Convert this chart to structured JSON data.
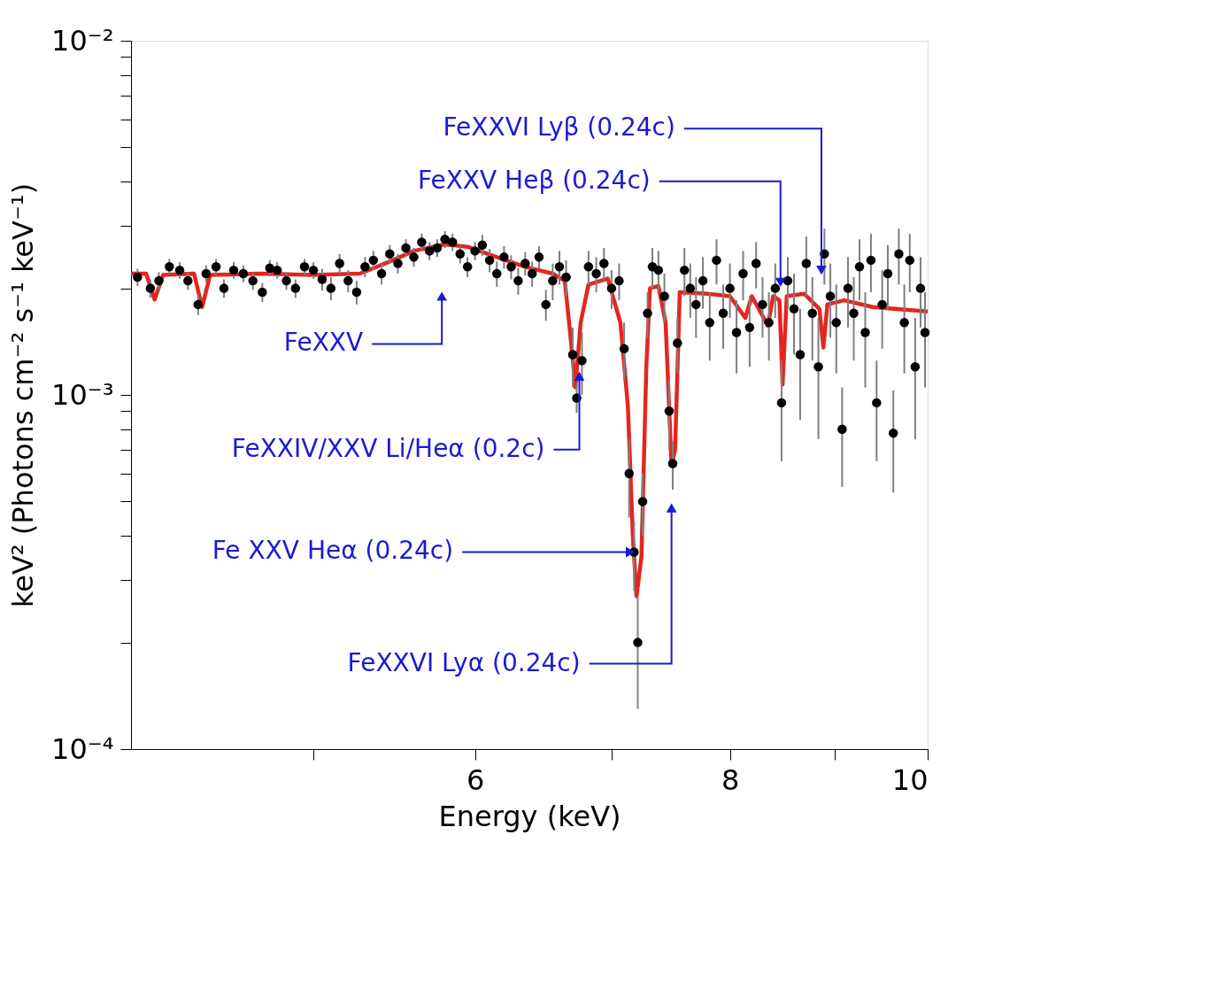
{
  "chart_data": {
    "type": "scatter",
    "xlabel": "Energy (keV)",
    "ylabel": "keV² (Photons cm⁻² s⁻¹ keV⁻¹)",
    "log": "xy",
    "grid": false,
    "xlim": [
      4.07,
      10
    ],
    "ylim": [
      0.0001,
      0.01
    ],
    "xticks": [
      {
        "value": 5,
        "label": null
      },
      6,
      {
        "value": 7,
        "label": null
      },
      8,
      {
        "value": 9,
        "label": null
      },
      10
    ],
    "yticks": [
      {
        "value": 0.0001,
        "label": "10⁻⁴"
      },
      {
        "value": 0.0002,
        "label": null
      },
      {
        "value": 0.0003,
        "label": null
      },
      {
        "value": 0.0004,
        "label": null
      },
      {
        "value": 0.0005,
        "label": null
      },
      {
        "value": 0.0006,
        "label": null
      },
      {
        "value": 0.0007,
        "label": null
      },
      {
        "value": 0.0008,
        "label": null
      },
      {
        "value": 0.0009,
        "label": null
      },
      {
        "value": 0.001,
        "label": "10⁻³"
      },
      {
        "value": 0.002,
        "label": null
      },
      {
        "value": 0.003,
        "label": null
      },
      {
        "value": 0.004,
        "label": null
      },
      {
        "value": 0.005,
        "label": null
      },
      {
        "value": 0.006,
        "label": null
      },
      {
        "value": 0.007,
        "label": null
      },
      {
        "value": 0.008,
        "label": null
      },
      {
        "value": 0.009,
        "label": null
      },
      {
        "value": 0.01,
        "label": "10⁻²"
      }
    ],
    "series": [
      {
        "color": "#000000",
        "marker": "circle",
        "x": [
          4.1,
          4.16,
          4.2,
          4.25,
          4.3,
          4.34,
          4.39,
          4.43,
          4.48,
          4.52,
          4.57,
          4.62,
          4.67,
          4.72,
          4.76,
          4.8,
          4.85,
          4.9,
          4.95,
          5.0,
          5.05,
          5.1,
          5.15,
          5.2,
          5.25,
          5.3,
          5.35,
          5.4,
          5.45,
          5.5,
          5.55,
          5.6,
          5.65,
          5.7,
          5.75,
          5.8,
          5.85,
          5.9,
          5.95,
          6.0,
          6.05,
          6.1,
          6.15,
          6.2,
          6.25,
          6.3,
          6.35,
          6.4,
          6.45,
          6.5,
          6.55,
          6.6,
          6.65,
          6.7,
          6.73,
          6.77,
          6.82,
          6.88,
          6.94,
          7.0,
          7.06,
          7.1,
          7.14,
          7.18,
          7.21,
          7.25,
          7.29,
          7.33,
          7.38,
          7.43,
          7.47,
          7.5,
          7.54,
          7.6,
          7.65,
          7.7,
          7.76,
          7.82,
          7.88,
          7.94,
          8.0,
          8.06,
          8.12,
          8.18,
          8.24,
          8.3,
          8.36,
          8.42,
          8.48,
          8.54,
          8.6,
          8.66,
          8.72,
          8.78,
          8.84,
          8.9,
          8.96,
          9.02,
          9.08,
          9.14,
          9.2,
          9.26,
          9.32,
          9.38,
          9.44,
          9.5,
          9.56,
          9.62,
          9.68,
          9.74,
          9.8,
          9.86,
          9.92,
          9.97
        ],
        "values": [
          0.00215,
          0.002,
          0.0021,
          0.0023,
          0.00225,
          0.0021,
          0.0018,
          0.0022,
          0.0023,
          0.002,
          0.00225,
          0.0022,
          0.0021,
          0.00195,
          0.00228,
          0.00225,
          0.0021,
          0.002,
          0.0023,
          0.00225,
          0.00212,
          0.002,
          0.00235,
          0.0021,
          0.00195,
          0.0023,
          0.0024,
          0.0022,
          0.0025,
          0.00235,
          0.0026,
          0.00245,
          0.0027,
          0.00255,
          0.0026,
          0.00275,
          0.0027,
          0.0025,
          0.0023,
          0.00255,
          0.00265,
          0.0024,
          0.0022,
          0.00245,
          0.0023,
          0.0021,
          0.00235,
          0.0022,
          0.00245,
          0.0018,
          0.0021,
          0.0023,
          0.00215,
          0.0013,
          0.00098,
          0.00125,
          0.0023,
          0.0022,
          0.00235,
          0.002,
          0.0021,
          0.00135,
          0.0006,
          0.00036,
          0.0002,
          0.0005,
          0.0017,
          0.0023,
          0.00225,
          0.0019,
          0.0009,
          0.00064,
          0.0014,
          0.00225,
          0.002,
          0.0018,
          0.0021,
          0.0016,
          0.0024,
          0.0017,
          0.002,
          0.0015,
          0.0022,
          0.00155,
          0.00235,
          0.0018,
          0.0016,
          0.002,
          0.00095,
          0.0021,
          0.00175,
          0.0013,
          0.00235,
          0.0017,
          0.0012,
          0.0025,
          0.0019,
          0.0016,
          0.0008,
          0.002,
          0.0017,
          0.0023,
          0.0015,
          0.0024,
          0.00095,
          0.0018,
          0.0022,
          0.00078,
          0.0025,
          0.0016,
          0.0024,
          0.0012,
          0.002,
          0.0015
        ],
        "errors": [
          0.00012,
          0.00012,
          0.00012,
          0.00012,
          0.00012,
          0.00012,
          0.00012,
          0.00012,
          0.00012,
          0.00012,
          0.00012,
          0.00012,
          0.00012,
          0.00012,
          0.00012,
          0.00012,
          0.00012,
          0.00012,
          0.00012,
          0.00012,
          0.00015,
          0.00015,
          0.00015,
          0.00015,
          0.00015,
          0.00015,
          0.00015,
          0.00015,
          0.00015,
          0.00015,
          0.00015,
          0.00015,
          0.00015,
          0.00015,
          0.00015,
          0.00015,
          0.00015,
          0.00015,
          0.00015,
          0.00015,
          0.00018,
          0.00018,
          0.00018,
          0.00018,
          0.00018,
          0.00018,
          0.00018,
          0.00018,
          0.00018,
          0.00018,
          0.00025,
          0.00025,
          0.00025,
          0.00025,
          9e-05,
          0.00025,
          0.00025,
          0.00025,
          0.00025,
          0.00025,
          0.00025,
          0.00025,
          0.00015,
          8e-05,
          7e-05,
          0.0001,
          0.00025,
          0.0003,
          0.0003,
          0.0003,
          0.0002,
          0.0001,
          0.00025,
          0.00035,
          0.00035,
          0.00035,
          0.00035,
          0.00035,
          0.00035,
          0.00035,
          0.00035,
          0.00035,
          0.00035,
          0.00035,
          0.00035,
          0.00035,
          0.00035,
          0.00035,
          0.0003,
          0.00035,
          0.00045,
          0.00045,
          0.00045,
          0.00045,
          0.00045,
          0.00045,
          0.00045,
          0.00045,
          0.00025,
          0.00045,
          0.00045,
          0.00045,
          0.00045,
          0.00045,
          0.0003,
          0.00045,
          0.00045,
          0.00025,
          0.00045,
          0.00045,
          0.00045,
          0.00045,
          0.00045,
          0.00045
        ]
      },
      {
        "type": "line",
        "color": "#e3261f",
        "line_style": "solid",
        "x": [
          4.07,
          4.14,
          4.18,
          4.22,
          4.37,
          4.41,
          4.45,
          4.7,
          5.0,
          5.27,
          5.45,
          5.6,
          5.8,
          5.95,
          6.15,
          6.35,
          6.55,
          6.64,
          6.68,
          6.72,
          6.76,
          6.82,
          6.97,
          7.07,
          7.13,
          7.17,
          7.2,
          7.24,
          7.28,
          7.31,
          7.38,
          7.44,
          7.49,
          7.52,
          7.56,
          7.8,
          8.0,
          8.14,
          8.2,
          8.35,
          8.4,
          8.46,
          8.49,
          8.53,
          8.7,
          8.85,
          8.89,
          8.93,
          9.1,
          9.4,
          10.0
        ],
        "values": [
          0.0022,
          0.0022,
          0.00186,
          0.00218,
          0.0022,
          0.00177,
          0.00218,
          0.0022,
          0.00218,
          0.0022,
          0.00238,
          0.00255,
          0.00266,
          0.00262,
          0.00245,
          0.0023,
          0.0022,
          0.0021,
          0.0015,
          0.00105,
          0.0016,
          0.00205,
          0.00213,
          0.0016,
          0.00093,
          0.0004,
          0.00027,
          0.00035,
          0.0012,
          0.002,
          0.00203,
          0.0016,
          0.000635,
          0.0007,
          0.00195,
          0.00193,
          0.0019,
          0.00165,
          0.0019,
          0.00157,
          0.0019,
          0.00185,
          0.00107,
          0.0019,
          0.00193,
          0.00175,
          0.00136,
          0.0018,
          0.00185,
          0.00177,
          0.00172
        ]
      }
    ],
    "annotations": [
      {
        "text": "FeXXV",
        "x": 5.78,
        "y": 0.0019
      },
      {
        "text": "FeXXIV/XXV Li/Heα (0.2c)",
        "x": 6.75,
        "y": 0.00113
      },
      {
        "text": "Fe XXV Heα (0.24c)",
        "x": 7.15,
        "y": 0.00036
      },
      {
        "text": "FeXXVI Lyα (0.24c)",
        "x": 7.49,
        "y": 0.00048
      },
      {
        "text": "FeXXV Heβ (0.24c)",
        "x": 8.47,
        "y": 0.00208
      },
      {
        "text": "FeXXVI Lyβ (0.24c)",
        "x": 8.87,
        "y": 0.00225
      }
    ]
  }
}
